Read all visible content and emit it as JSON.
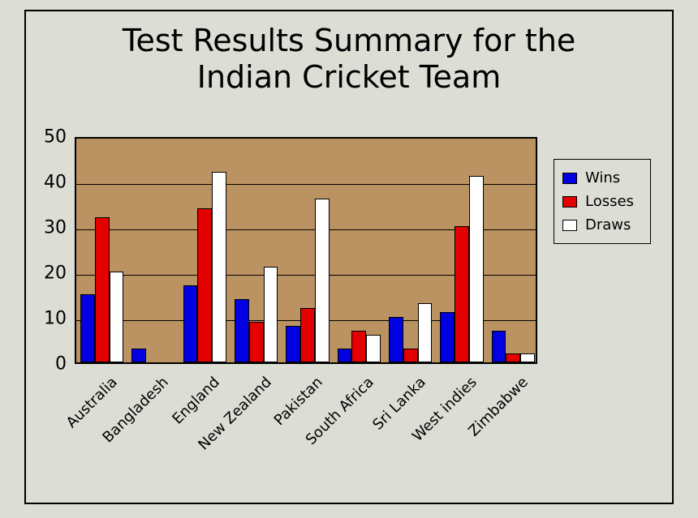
{
  "chart": {
    "type": "bar",
    "title_line1": "Test Results Summary for the",
    "title_line2": "Indian Cricket Team",
    "title_fontsize": 38,
    "background_color": "#dcddd5",
    "plot_background": "#bb9261",
    "border_color": "#000000",
    "ylim": [
      0,
      50
    ],
    "yticks": [
      0,
      10,
      20,
      30,
      40,
      50
    ],
    "ytick_fontsize": 22,
    "xtick_fontsize": 18,
    "categories": [
      "Australia",
      "Bangladesh",
      "England",
      "New Zealand",
      "Pakistan",
      "South Africa",
      "Sri Lanka",
      "West indies",
      "Zimbabwe"
    ],
    "series": [
      {
        "name": "Wins",
        "color": "#0000e3",
        "values": [
          15,
          3,
          17,
          14,
          8,
          3,
          10,
          11,
          7
        ]
      },
      {
        "name": "Losses",
        "color": "#e30000",
        "values": [
          32,
          0,
          34,
          9,
          12,
          7,
          3,
          30,
          2
        ]
      },
      {
        "name": "Draws",
        "color": "#ffffff",
        "values": [
          20,
          0,
          42,
          21,
          36,
          6,
          13,
          41,
          2
        ]
      }
    ],
    "bar_border": "#000000",
    "legend_position": "right"
  }
}
